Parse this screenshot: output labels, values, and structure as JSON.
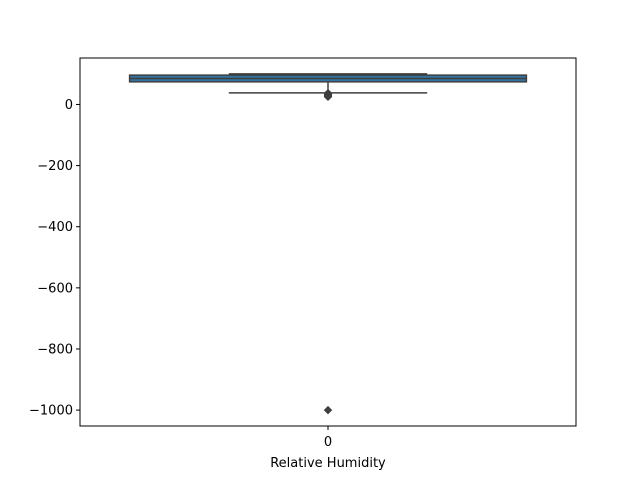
{
  "chart_data": {
    "type": "box",
    "title": "",
    "xlabel": "Relative Humidity",
    "ylabel": "",
    "categories": [
      "0"
    ],
    "ylim": [
      -1052,
      152
    ],
    "yticks": [
      0,
      -200,
      -400,
      -600,
      -800,
      -1000
    ],
    "ytick_labels": [
      "0",
      "−200",
      "−400",
      "−600",
      "−800",
      "−1000"
    ],
    "box": {
      "whisker_low": 38,
      "q1": 74,
      "median": 85,
      "q3": 96,
      "whisker_high": 100
    },
    "outliers": [
      37,
      35,
      33,
      31,
      29,
      27,
      25,
      -1000
    ],
    "colors": {
      "box_fill": "#3274a1",
      "box_edge": "#3f3f3f",
      "median": "#3f3f3f",
      "whisker": "#3f3f3f",
      "outlier": "#3f3f3f"
    }
  }
}
